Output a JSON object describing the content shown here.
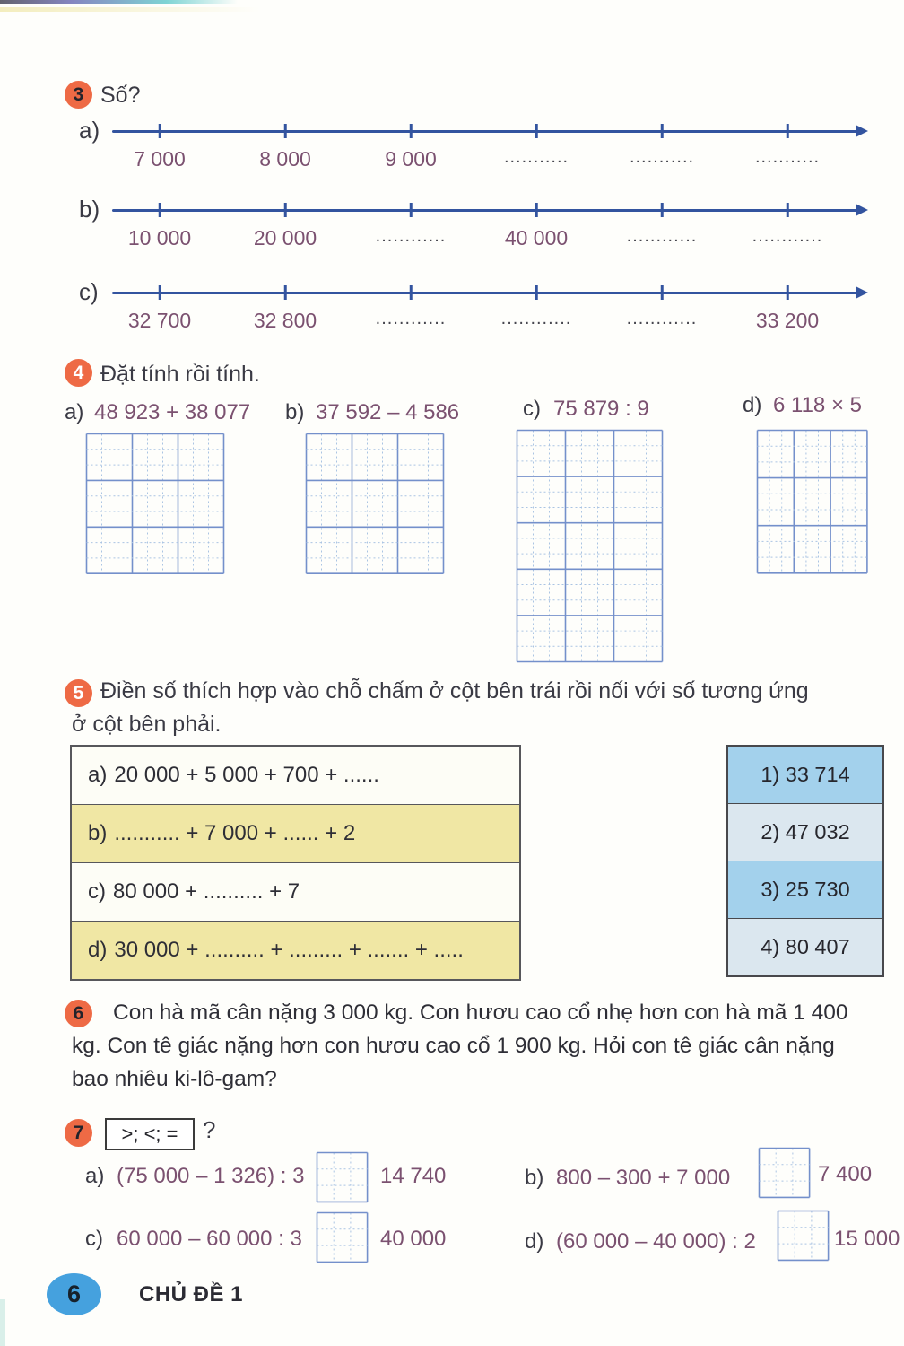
{
  "colors": {
    "accent_orange": "#ee6a45",
    "numberline_blue": "#33549f",
    "expression_purple": "#7b5170",
    "grid_major_blue": "#7490cb",
    "grid_minor_blue": "#aac4e3",
    "table_yellow": "#f0e7a4",
    "table_blue_dark": "#a3d1ec",
    "table_blue_light": "#dbe7ef",
    "footer_blue": "#45a1de"
  },
  "exercise3": {
    "number": "3",
    "title": "Số?",
    "lines": [
      {
        "label": "a)",
        "values": [
          "7 000",
          "8 000",
          "9 000",
          "...........",
          "...........",
          "..........."
        ]
      },
      {
        "label": "b)",
        "values": [
          "10 000",
          "20 000",
          "............",
          "40 000",
          "............",
          "............"
        ]
      },
      {
        "label": "c)",
        "values": [
          "32 700",
          "32 800",
          "............",
          "............",
          "............",
          "33 200"
        ]
      }
    ]
  },
  "exercise4": {
    "number": "4",
    "title": "Đặt tính rồi tính.",
    "problems": [
      {
        "label": "a)",
        "expression": "48 923 + 38 077"
      },
      {
        "label": "b)",
        "expression": "37 592 – 4 586"
      },
      {
        "label": "c)",
        "expression": "75 879 : 9"
      },
      {
        "label": "d)",
        "expression": "6 118 × 5"
      }
    ]
  },
  "exercise5": {
    "number": "5",
    "title_line1": "Điền số thích hợp vào chỗ chấm ở cột bên trái rồi nối với số tương ứng",
    "title_line2": "ở cột bên phải.",
    "left_rows": [
      {
        "label": "a)",
        "text": "20 000 + 5 000 + 700 + ......"
      },
      {
        "label": "b)",
        "text": "........... + 7 000 + ...... + 2"
      },
      {
        "label": "c)",
        "text": "80 000 + .......... + 7"
      },
      {
        "label": "d)",
        "text": "30 000 + .......... + ......... + ....... + ....."
      }
    ],
    "right_rows": [
      {
        "text": "1) 33 714"
      },
      {
        "text": "2) 47 032"
      },
      {
        "text": "3) 25 730"
      },
      {
        "text": "4) 80 407"
      }
    ]
  },
  "exercise6": {
    "number": "6",
    "text": "Con hà mã cân nặng 3 000 kg. Con hươu cao cổ nhẹ hơn con hà mã 1 400 kg. Con tê giác nặng hơn con hươu cao cổ 1 900 kg. Hỏi con tê giác cân nặng bao nhiêu ki-lô-gam?"
  },
  "exercise7": {
    "number": "7",
    "symbols": ">; <; =",
    "question_mark": "?",
    "problems": [
      {
        "label": "a)",
        "expression": "(75 000 – 1 326) : 3",
        "value": "14 740"
      },
      {
        "label": "b)",
        "expression": "800 – 300 + 7 000",
        "value": "7 400"
      },
      {
        "label": "c)",
        "expression": "60 000 – 60 000 : 3",
        "value": "40 000"
      },
      {
        "label": "d)",
        "expression": "(60 000 – 40 000) : 2",
        "value": "15 000"
      }
    ]
  },
  "footer": {
    "page_number": "6",
    "label": "CHỦ ĐỀ 1"
  }
}
